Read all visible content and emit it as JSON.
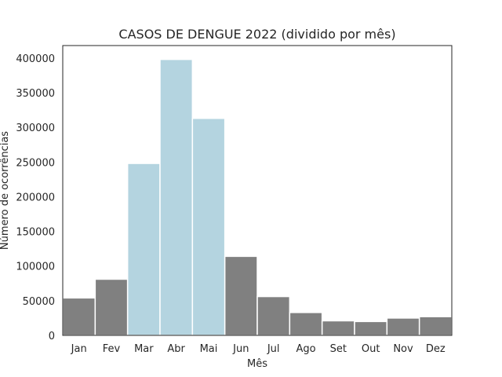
{
  "chart_data": {
    "type": "bar",
    "title": "CASOS DE DENGUE 2022 (dividido por mês)",
    "xlabel": "Mês",
    "ylabel": "Número de ocorrências",
    "categories": [
      "Jan",
      "Fev",
      "Mar",
      "Abr",
      "Mai",
      "Jun",
      "Jul",
      "Ago",
      "Set",
      "Out",
      "Nov",
      "Dez"
    ],
    "values": [
      54000,
      81000,
      248000,
      398000,
      313000,
      114000,
      56000,
      33000,
      21000,
      20000,
      25000,
      27000
    ],
    "highlighted": [
      "Mar",
      "Abr",
      "Mai"
    ],
    "yticks": [
      0,
      50000,
      100000,
      150000,
      200000,
      250000,
      300000,
      350000,
      400000
    ],
    "ylim": [
      0,
      418000
    ],
    "grid": false,
    "colors": {
      "default_bar": "#808080",
      "highlight_bar": "#b4d4e0",
      "bar_edge": "#ffffff",
      "axes_edge": "#262626",
      "text": "#262626"
    }
  }
}
